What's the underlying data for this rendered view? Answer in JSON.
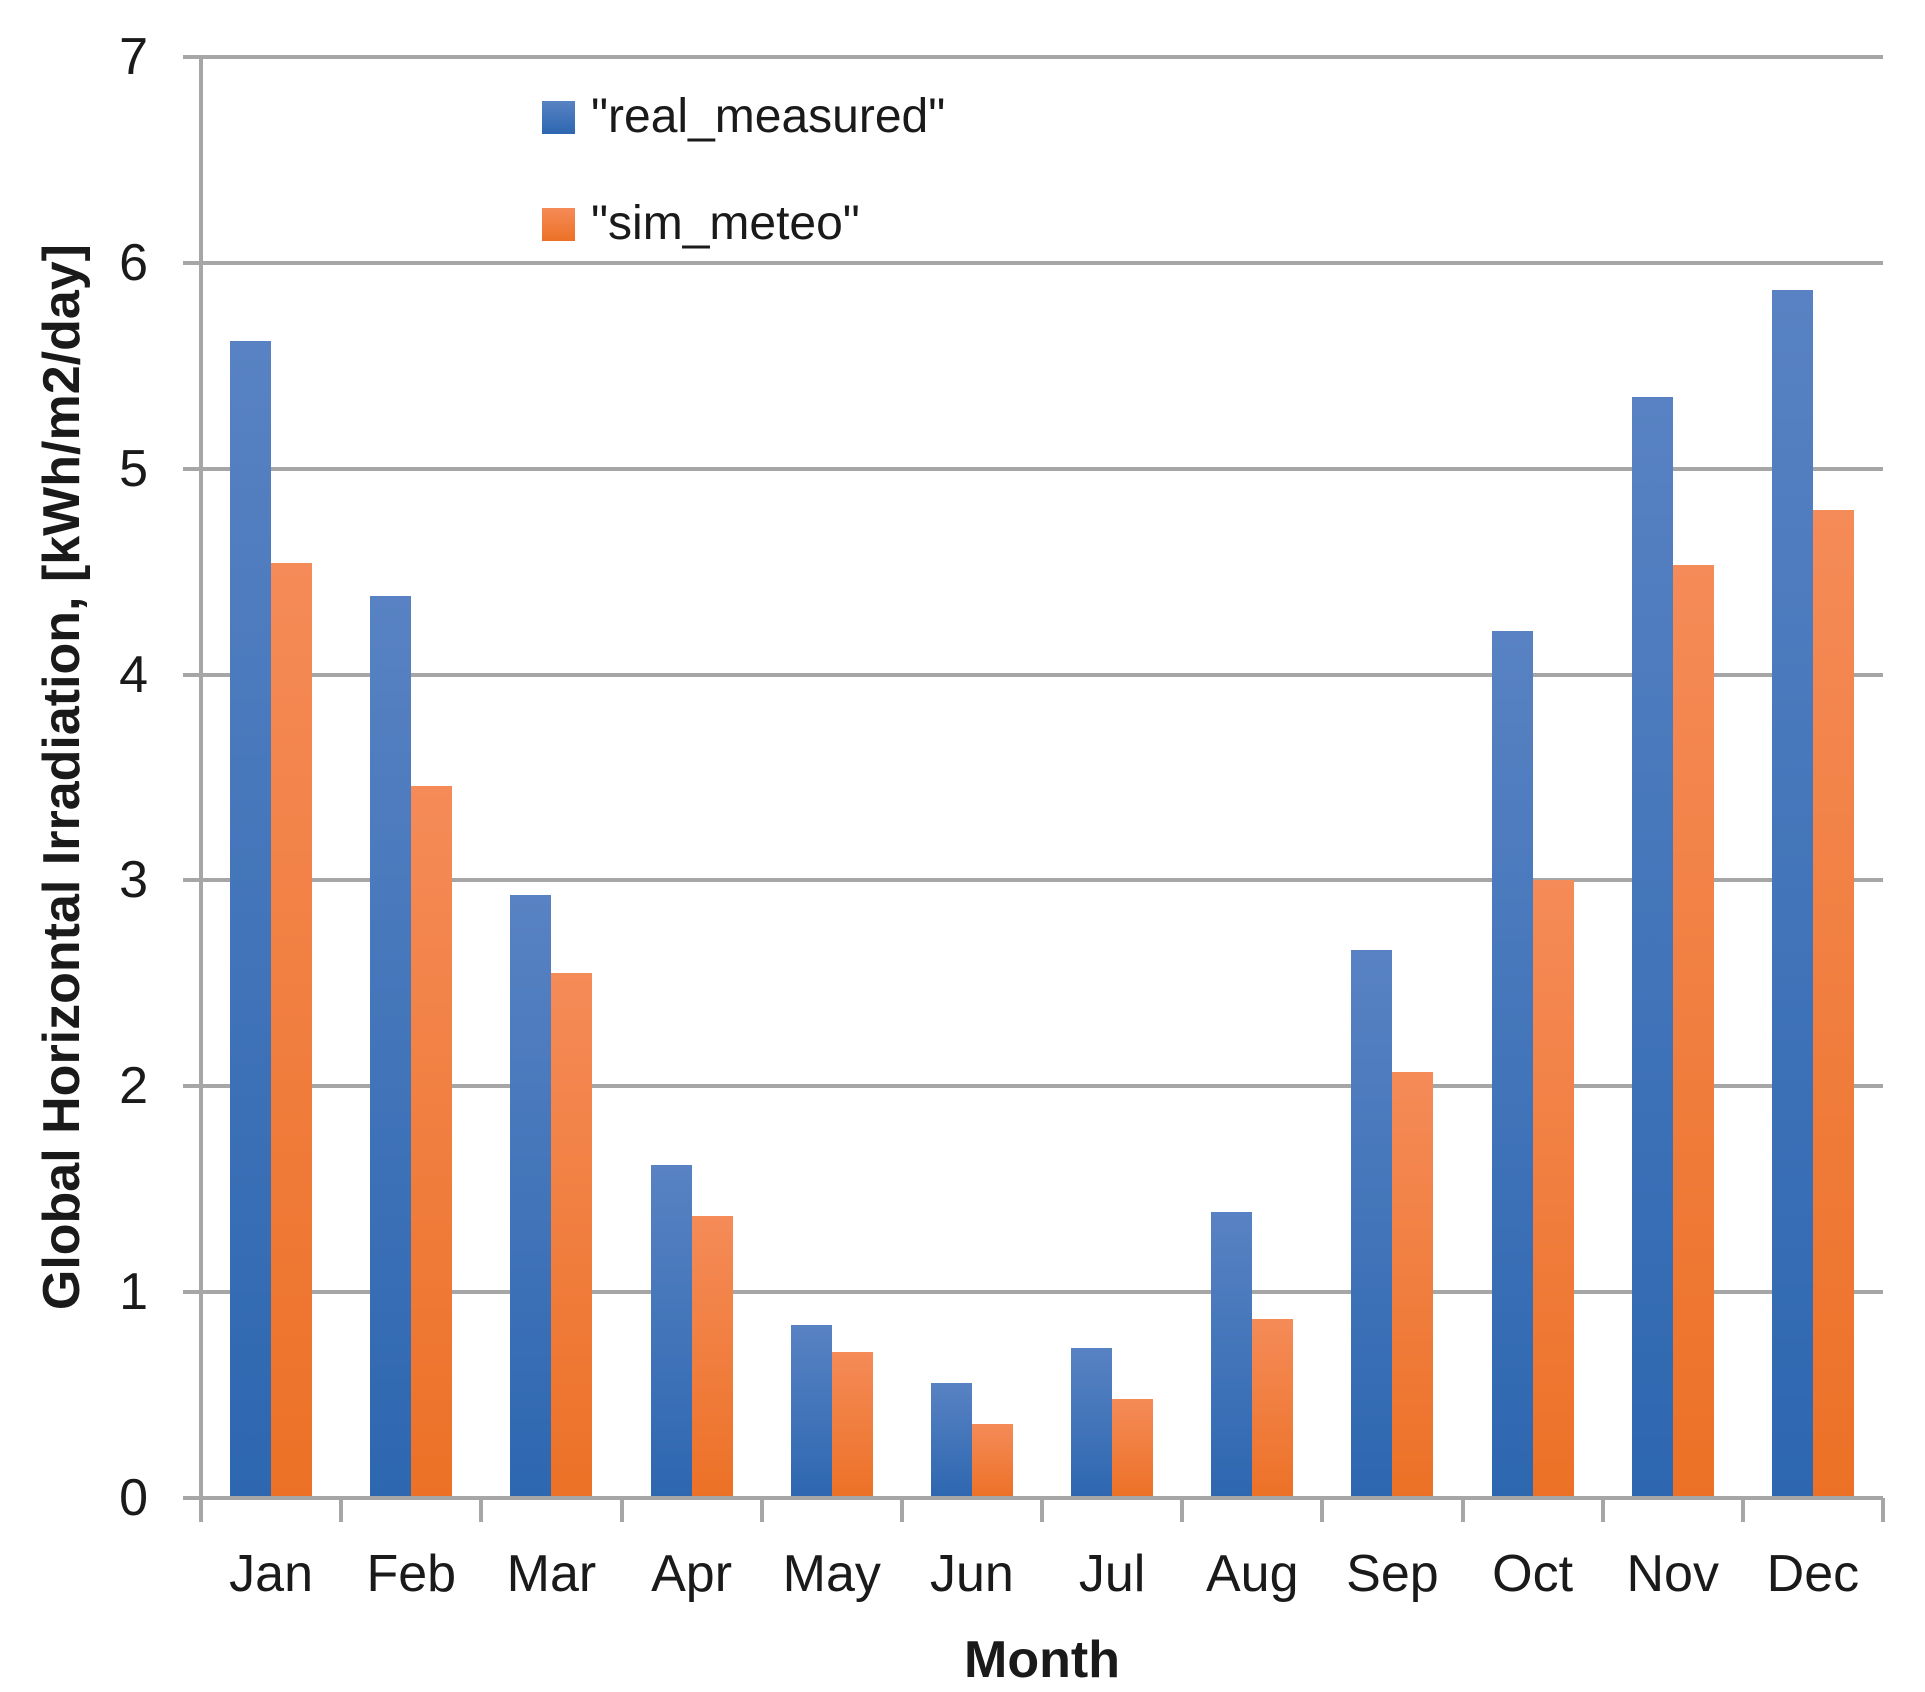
{
  "chart_data": {
    "type": "bar",
    "title": "",
    "xlabel": "Month",
    "ylabel": "Global Horizontal Irradiation, [kWh/m2/day]",
    "categories": [
      "Jan",
      "Feb",
      "Mar",
      "Apr",
      "May",
      "Jun",
      "Jul",
      "Aug",
      "Sep",
      "Oct",
      "Nov",
      "Dec"
    ],
    "series": [
      {
        "name": "\"real_measured\"",
        "key": "real_measured",
        "color_top": "#5882c3",
        "color_bottom": "#2d67b0",
        "values": [
          5.62,
          4.38,
          2.93,
          1.62,
          0.84,
          0.56,
          0.73,
          1.39,
          2.66,
          4.21,
          5.35,
          5.87
        ]
      },
      {
        "name": "\"sim_meteo\"",
        "key": "sim_meteo",
        "color_top": "#f58b58",
        "color_bottom": "#ec7126",
        "values": [
          4.54,
          3.46,
          2.55,
          1.37,
          0.71,
          0.36,
          0.48,
          0.87,
          2.07,
          3.0,
          4.53,
          4.8
        ]
      }
    ],
    "y_ticks": [
      0,
      1,
      2,
      3,
      4,
      5,
      6,
      7
    ],
    "ylim": [
      0,
      7
    ],
    "grid": "horizontal gridlines on",
    "legend_position": "inside top-left"
  },
  "colors": {
    "gridline": "#a6a6a6",
    "axis": "#a6a6a6",
    "text": "#1a1a1a",
    "background": "#ffffff"
  }
}
